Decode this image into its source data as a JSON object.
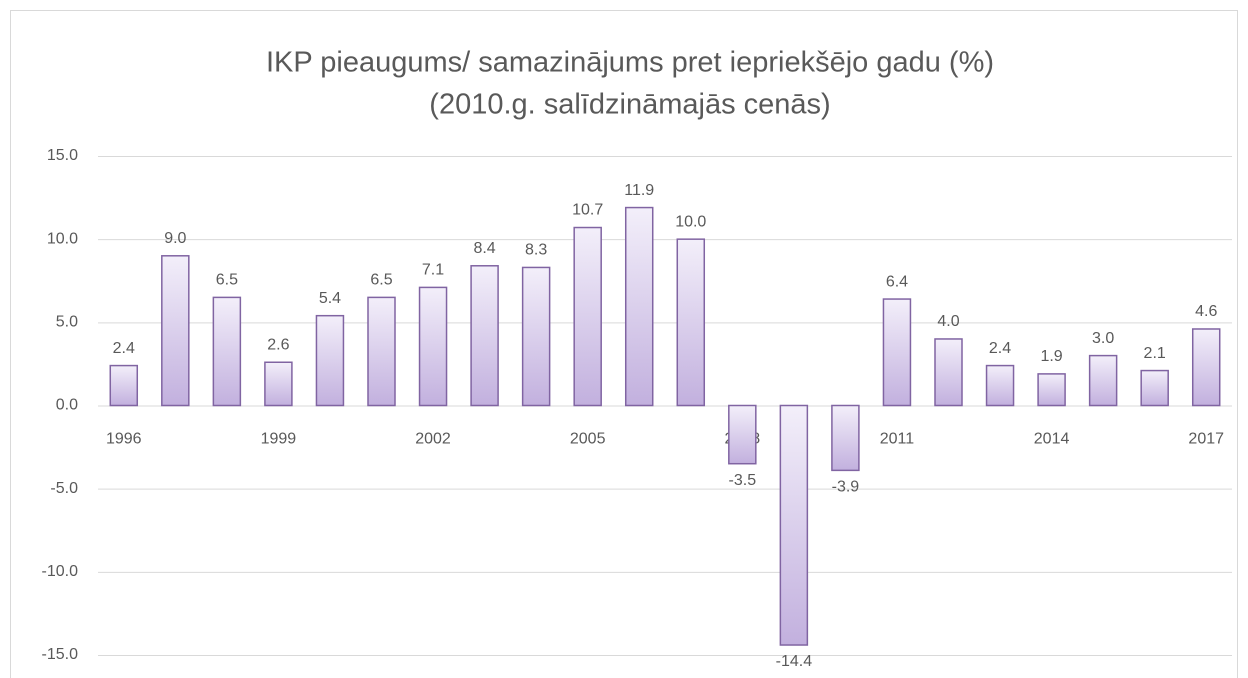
{
  "chart_data": {
    "type": "bar",
    "title": "IKP pieaugums/ samazinājums pret iepriekšējo gadu (%)",
    "subtitle": "(2010.g. salīdzināmajās cenās)",
    "categories": [
      "1996",
      null,
      null,
      "1999",
      null,
      null,
      "2002",
      null,
      null,
      "2005",
      null,
      null,
      "2008",
      null,
      null,
      "2011",
      null,
      null,
      "2014",
      null,
      null,
      "2017"
    ],
    "values": [
      2.4,
      9.0,
      6.5,
      2.6,
      5.4,
      6.5,
      7.1,
      8.4,
      8.3,
      10.7,
      11.9,
      10.0,
      -3.5,
      -14.4,
      -3.9,
      6.4,
      4.0,
      2.4,
      1.9,
      3.0,
      2.1,
      4.6
    ],
    "value_labels": [
      "2.4",
      "9.0",
      "6.5",
      "2.6",
      "5.4",
      "6.5",
      "7.1",
      "8.4",
      "8.3",
      "10.7",
      "11.9",
      "10.0",
      "-3.5",
      "-14.4",
      "-3.9",
      "6.4",
      "4.0",
      "2.4",
      "1.9",
      "3.0",
      "2.1",
      "4.6"
    ],
    "color": "#8064a2",
    "ylim": [
      -15,
      15
    ],
    "yticks": [
      {
        "value": -15,
        "label": "-15.0"
      },
      {
        "value": -10,
        "label": "-10.0"
      },
      {
        "value": -5,
        "label": "-5.0"
      },
      {
        "value": 0,
        "label": "0.0"
      },
      {
        "value": 5,
        "label": "5.0"
      },
      {
        "value": 10,
        "label": "10.0"
      },
      {
        "value": 15,
        "label": "15.0"
      }
    ],
    "grid": true
  }
}
